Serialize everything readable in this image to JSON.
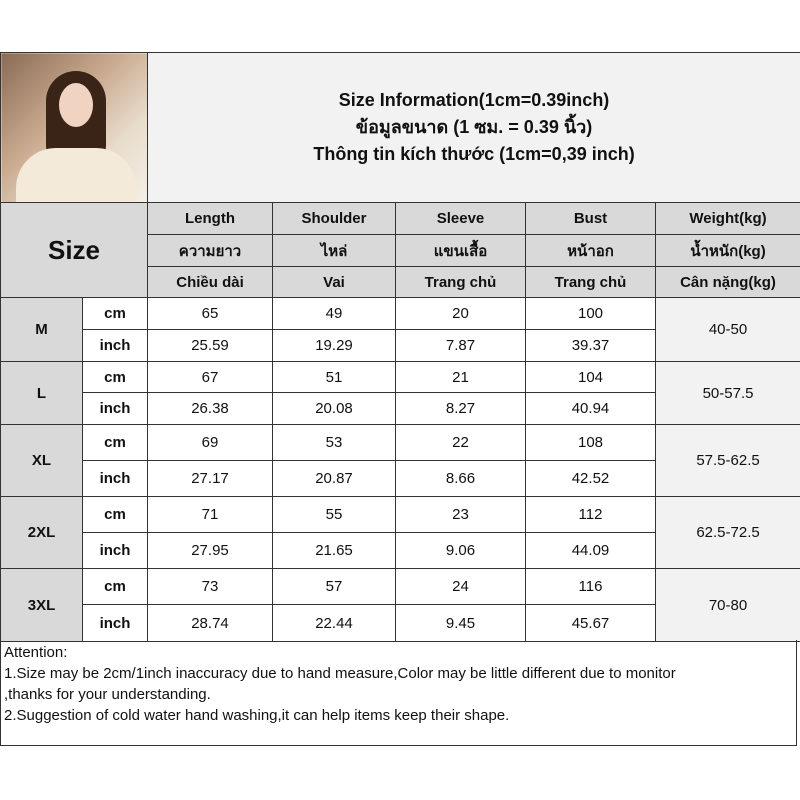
{
  "title": {
    "line1": "Size Information(1cm=0.39inch)",
    "line2": "ข้อมูลขนาด (1 ซม. = 0.39 นิ้ว)",
    "line3": "Thông tin kích thước (1cm=0,39 inch)"
  },
  "size_label": "Size",
  "columns": [
    {
      "en": "Length",
      "th": "ความยาว",
      "vi": "Chiều dài"
    },
    {
      "en": "Shoulder",
      "th": "ไหล่",
      "vi": "Vai"
    },
    {
      "en": "Sleeve",
      "th": "แขนเสื้อ",
      "vi": "Trang chủ"
    },
    {
      "en": "Bust",
      "th": "หน้าอก",
      "vi": "Trang chủ"
    },
    {
      "en": "Weight(kg)",
      "th": "น้ำหนัก(kg)",
      "vi": "Cân nặng(kg)"
    }
  ],
  "units": {
    "cm": "cm",
    "inch": "inch"
  },
  "rows": [
    {
      "size": "M",
      "cm": [
        "65",
        "49",
        "20",
        "100"
      ],
      "inch": [
        "25.59",
        "19.29",
        "7.87",
        "39.37"
      ],
      "weight": "40-50"
    },
    {
      "size": "L",
      "cm": [
        "67",
        "51",
        "21",
        "104"
      ],
      "inch": [
        "26.38",
        "20.08",
        "8.27",
        "40.94"
      ],
      "weight": "50-57.5"
    },
    {
      "size": "XL",
      "cm": [
        "69",
        "53",
        "22",
        "108"
      ],
      "inch": [
        "27.17",
        "20.87",
        "8.66",
        "42.52"
      ],
      "weight": "57.5-62.5"
    },
    {
      "size": "2XL",
      "cm": [
        "71",
        "55",
        "23",
        "112"
      ],
      "inch": [
        "27.95",
        "21.65",
        "9.06",
        "44.09"
      ],
      "weight": "62.5-72.5"
    },
    {
      "size": "3XL",
      "cm": [
        "73",
        "57",
        "24",
        "116"
      ],
      "inch": [
        "28.74",
        "22.44",
        "9.45",
        "45.67"
      ],
      "weight": "70-80"
    }
  ],
  "attention": {
    "heading": "Attention:",
    "line1": "1.Size may be 2cm/1inch inaccuracy due to hand measure,Color may be little different due to monitor",
    "line2": ",thanks for your understanding.",
    "line3": "2.Suggestion of cold water hand washing,it can help items keep their shape."
  }
}
